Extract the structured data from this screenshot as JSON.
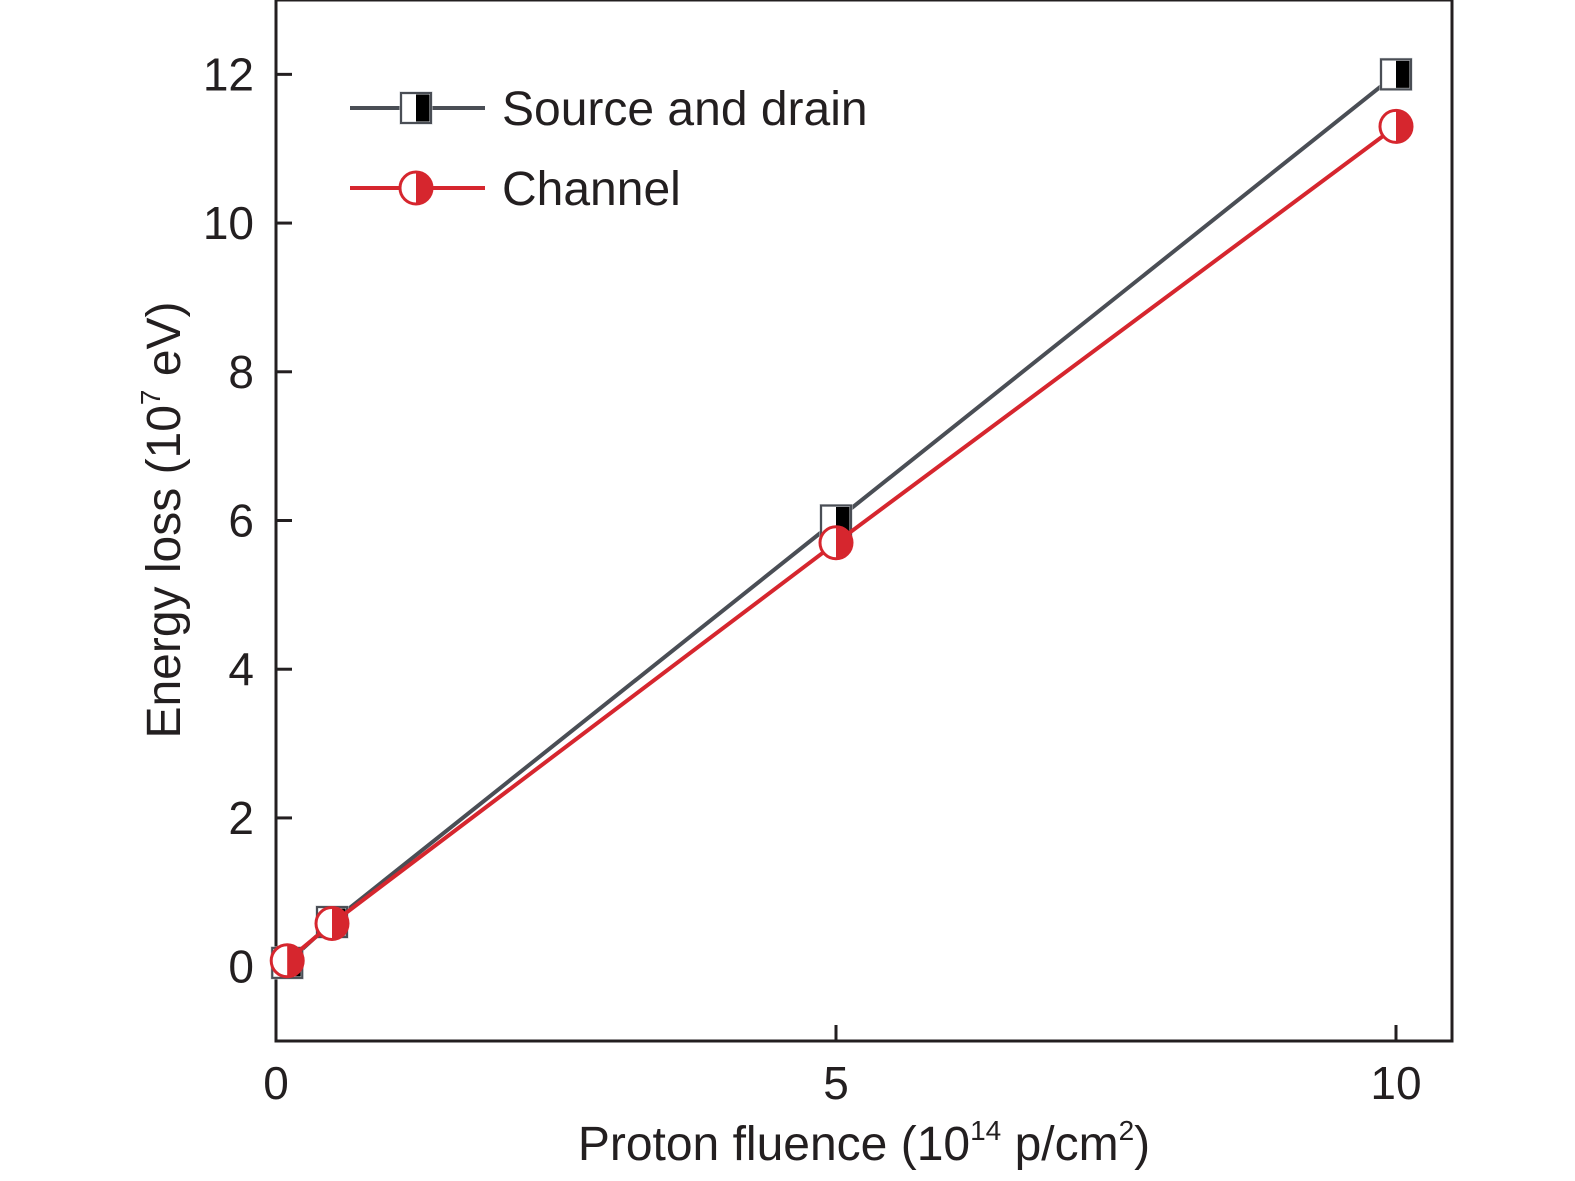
{
  "chart_data": {
    "type": "line",
    "title": "",
    "xlabel": {
      "prefix": "Proton fluence (10",
      "sup": "14",
      "middle": " p/cm",
      "sup2": "2",
      "suffix": ")"
    },
    "ylabel": {
      "prefix": "Energy loss (10",
      "sup": "7",
      "suffix": " eV)"
    },
    "xlim": [
      0,
      10.5
    ],
    "ylim": [
      -1,
      13
    ],
    "xticks": [
      0,
      5,
      10
    ],
    "xtick_labels": [
      "0",
      "5",
      "10"
    ],
    "yticks": [
      0,
      2,
      4,
      6,
      8,
      10,
      12
    ],
    "ytick_labels": [
      "0",
      "2",
      "4",
      "6",
      "8",
      "10",
      "12"
    ],
    "grid": false,
    "legend_position": "top-left",
    "series": [
      {
        "name": "Source and drain",
        "color": "#4a4e55",
        "marker": "half-filled-square",
        "x": [
          0.1,
          0.5,
          5,
          10
        ],
        "y": [
          0.05,
          0.6,
          6.0,
          12.0
        ]
      },
      {
        "name": "Channel",
        "color": "#d6262e",
        "marker": "half-filled-circle",
        "x": [
          0.1,
          0.5,
          5,
          10
        ],
        "y": [
          0.08,
          0.58,
          5.7,
          11.3
        ]
      }
    ]
  }
}
